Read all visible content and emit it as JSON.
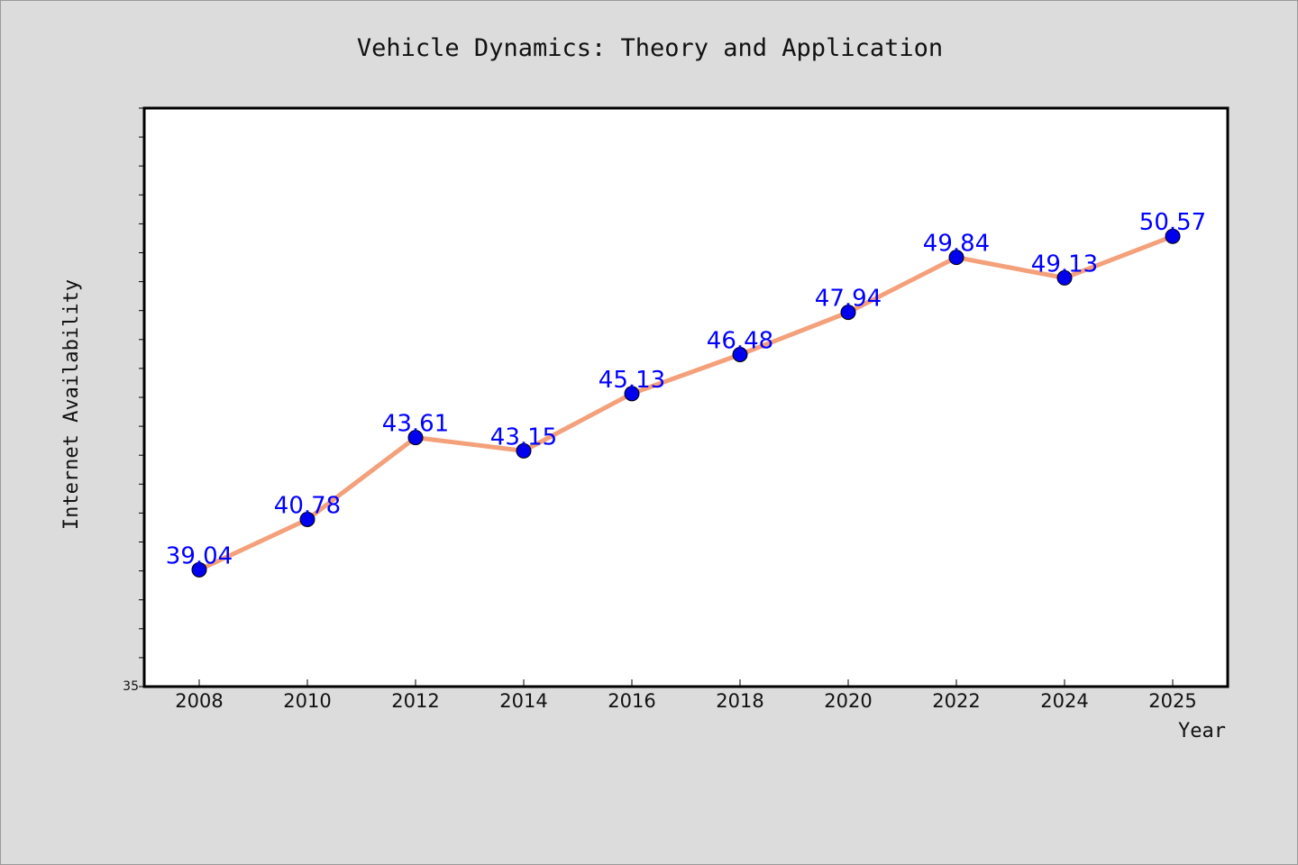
{
  "chart_data": {
    "type": "line",
    "title": "Vehicle Dynamics: Theory and Application",
    "xlabel": "Year",
    "ylabel": "Internet Availability",
    "categories": [
      "2008",
      "2010",
      "2012",
      "2014",
      "2016",
      "2018",
      "2020",
      "2022",
      "2024",
      "2025"
    ],
    "series": [
      {
        "values": [
          39.04,
          40.78,
          43.61,
          43.15,
          45.13,
          46.48,
          47.94,
          49.84,
          49.13,
          50.57
        ]
      }
    ],
    "data_labels": [
      "39.04",
      "40.78",
      "43.61",
      "43.15",
      "45.13",
      "46.48",
      "47.94",
      "49.84",
      "49.13",
      "50.57"
    ],
    "ylim": [
      35,
      55
    ],
    "y_tick_labels": [
      "35"
    ],
    "y_minor_tick_step": 1,
    "grid": false,
    "legend": "none",
    "colors": {
      "background": "#dcdcdc",
      "plot_background": "#ffffff",
      "line": "#f4a07a",
      "marker": "#0000ee",
      "data_label": "#0000ff"
    }
  }
}
